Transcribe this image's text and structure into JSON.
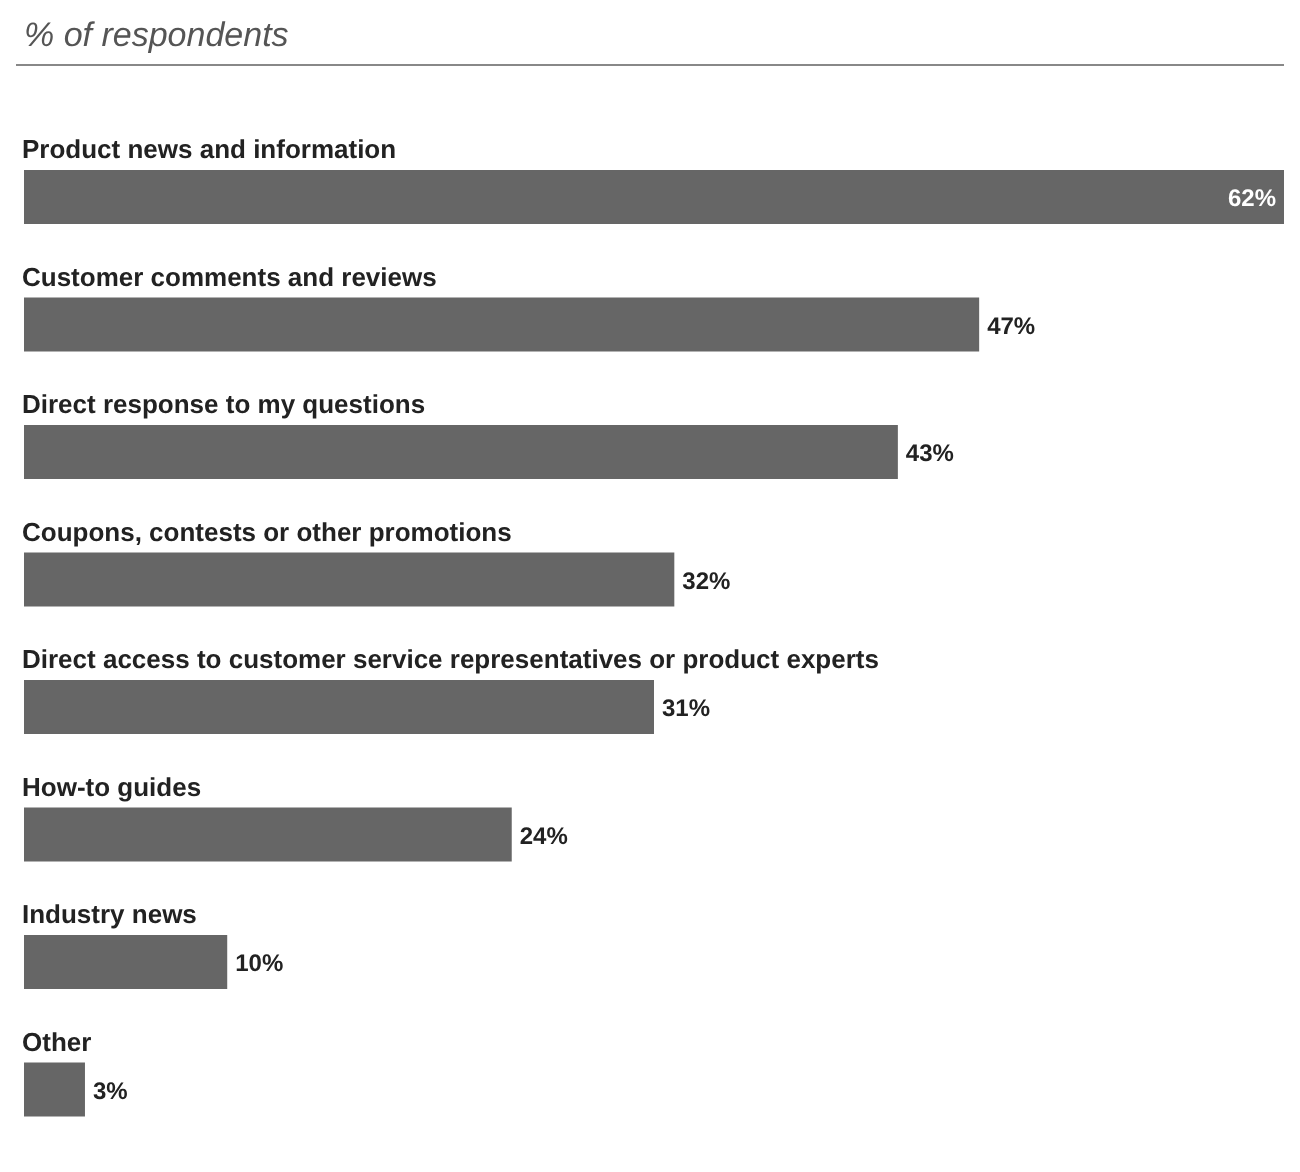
{
  "chart_data": {
    "type": "bar",
    "orientation": "horizontal",
    "title": "% of respondents",
    "categories": [
      "Product news and information",
      "Customer comments and reviews",
      "Direct response to my questions",
      "Coupons, contests or other promotions",
      "Direct access to customer service representatives or product experts",
      "How-to guides",
      "Industry news",
      "Other"
    ],
    "values": [
      62,
      47,
      43,
      32,
      31,
      24,
      10,
      3
    ],
    "value_labels": [
      "62%",
      "47%",
      "43%",
      "32%",
      "31%",
      "24%",
      "10%",
      "3%"
    ],
    "color": "#666666"
  }
}
